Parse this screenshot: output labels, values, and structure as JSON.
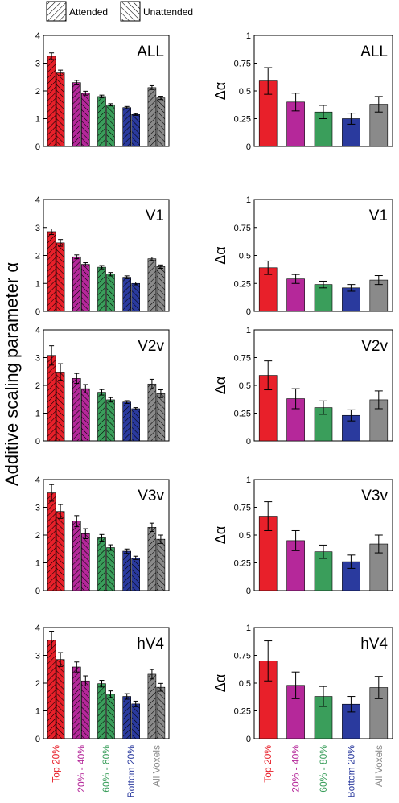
{
  "legend": {
    "attended": "Attended",
    "unattended": "Unattended"
  },
  "ylabel_left": "Additive scaling parameter α",
  "ylabel_right": "Δα",
  "categories": [
    "Top 20%",
    "20% - 40%",
    "60% - 80%",
    "Bottom 20%",
    "All Voxels"
  ],
  "category_colors": [
    "#e8202a",
    "#b5289a",
    "#3a9e5b",
    "#2a3a9e",
    "#8a8a8a"
  ],
  "chart_data": [
    {
      "type": "bar",
      "panel": "ALL",
      "title": "ALL",
      "ylim": [
        0,
        4
      ],
      "yticks": [
        "0",
        "1",
        "2",
        "3",
        "4"
      ],
      "series": [
        {
          "name": "Attended",
          "values": [
            3.25,
            2.3,
            1.8,
            1.4,
            2.12
          ],
          "errors": [
            0.12,
            0.08,
            0.05,
            0.04,
            0.07
          ]
        },
        {
          "name": "Unattended",
          "values": [
            2.65,
            1.92,
            1.5,
            1.15,
            1.75
          ],
          "errors": [
            0.1,
            0.07,
            0.04,
            0.03,
            0.06
          ]
        }
      ]
    },
    {
      "type": "bar",
      "panel": "ALL",
      "title": "ALL",
      "ylim": [
        0,
        1
      ],
      "yticks": [
        "0",
        "0.25",
        "0.5",
        "0.75",
        "1"
      ],
      "values": [
        0.59,
        0.4,
        0.31,
        0.25,
        0.38
      ],
      "errors": [
        0.12,
        0.08,
        0.06,
        0.05,
        0.07
      ]
    },
    {
      "type": "bar",
      "panel": "V1",
      "title": "V1",
      "ylim": [
        0,
        4
      ],
      "yticks": [
        "0",
        "1",
        "2",
        "3",
        "4"
      ],
      "series": [
        {
          "name": "Attended",
          "values": [
            2.85,
            1.95,
            1.58,
            1.22,
            1.88
          ],
          "errors": [
            0.1,
            0.07,
            0.06,
            0.05,
            0.06
          ]
        },
        {
          "name": "Unattended",
          "values": [
            2.45,
            1.68,
            1.33,
            1.0,
            1.6
          ],
          "errors": [
            0.12,
            0.06,
            0.06,
            0.05,
            0.06
          ]
        }
      ]
    },
    {
      "type": "bar",
      "panel": "V1",
      "title": "V1",
      "ylim": [
        0,
        1
      ],
      "yticks": [
        "0",
        "0.25",
        "0.5",
        "0.75",
        "1"
      ],
      "values": [
        0.39,
        0.29,
        0.24,
        0.21,
        0.28
      ],
      "errors": [
        0.06,
        0.04,
        0.03,
        0.03,
        0.04
      ]
    },
    {
      "type": "bar",
      "panel": "V2v",
      "title": "V2v",
      "ylim": [
        0,
        4
      ],
      "yticks": [
        "0",
        "1",
        "2",
        "3",
        "4"
      ],
      "series": [
        {
          "name": "Attended",
          "values": [
            3.08,
            2.25,
            1.75,
            1.4,
            2.05
          ],
          "errors": [
            0.35,
            0.18,
            0.1,
            0.05,
            0.17
          ]
        },
        {
          "name": "Unattended",
          "values": [
            2.48,
            1.88,
            1.48,
            1.16,
            1.7
          ],
          "errors": [
            0.3,
            0.15,
            0.08,
            0.04,
            0.14
          ]
        }
      ]
    },
    {
      "type": "bar",
      "panel": "V2v",
      "title": "V2v",
      "ylim": [
        0,
        1
      ],
      "yticks": [
        "0",
        "0.25",
        "0.5",
        "0.75",
        "1"
      ],
      "values": [
        0.59,
        0.38,
        0.3,
        0.23,
        0.37
      ],
      "errors": [
        0.13,
        0.09,
        0.06,
        0.05,
        0.08
      ]
    },
    {
      "type": "bar",
      "panel": "V3v",
      "title": "V3v",
      "ylim": [
        0,
        4
      ],
      "yticks": [
        "0",
        "1",
        "2",
        "3",
        "4"
      ],
      "series": [
        {
          "name": "Attended",
          "values": [
            3.52,
            2.5,
            1.9,
            1.42,
            2.28
          ],
          "errors": [
            0.3,
            0.2,
            0.12,
            0.08,
            0.15
          ]
        },
        {
          "name": "Unattended",
          "values": [
            2.85,
            2.05,
            1.55,
            1.18,
            1.85
          ],
          "errors": [
            0.25,
            0.18,
            0.1,
            0.06,
            0.15
          ]
        }
      ]
    },
    {
      "type": "bar",
      "panel": "V3v",
      "title": "V3v",
      "ylim": [
        0,
        1
      ],
      "yticks": [
        "0",
        "0.25",
        "0.5",
        "0.75",
        "1"
      ],
      "values": [
        0.67,
        0.45,
        0.35,
        0.26,
        0.42
      ],
      "errors": [
        0.13,
        0.09,
        0.06,
        0.06,
        0.08
      ]
    },
    {
      "type": "bar",
      "panel": "hV4",
      "title": "hV4",
      "ylim": [
        0,
        4
      ],
      "yticks": [
        "0",
        "1",
        "2",
        "3",
        "4"
      ],
      "series": [
        {
          "name": "Attended",
          "values": [
            3.55,
            2.58,
            1.98,
            1.52,
            2.32
          ],
          "errors": [
            0.32,
            0.18,
            0.12,
            0.1,
            0.17
          ]
        },
        {
          "name": "Unattended",
          "values": [
            2.85,
            2.08,
            1.6,
            1.25,
            1.85
          ],
          "errors": [
            0.25,
            0.18,
            0.12,
            0.1,
            0.14
          ]
        }
      ]
    },
    {
      "type": "bar",
      "panel": "hV4",
      "title": "hV4",
      "ylim": [
        0,
        1
      ],
      "yticks": [
        "0",
        "0.25",
        "0.5",
        "0.75",
        "1"
      ],
      "values": [
        0.7,
        0.48,
        0.38,
        0.31,
        0.46
      ],
      "errors": [
        0.18,
        0.12,
        0.09,
        0.07,
        0.1
      ]
    }
  ]
}
